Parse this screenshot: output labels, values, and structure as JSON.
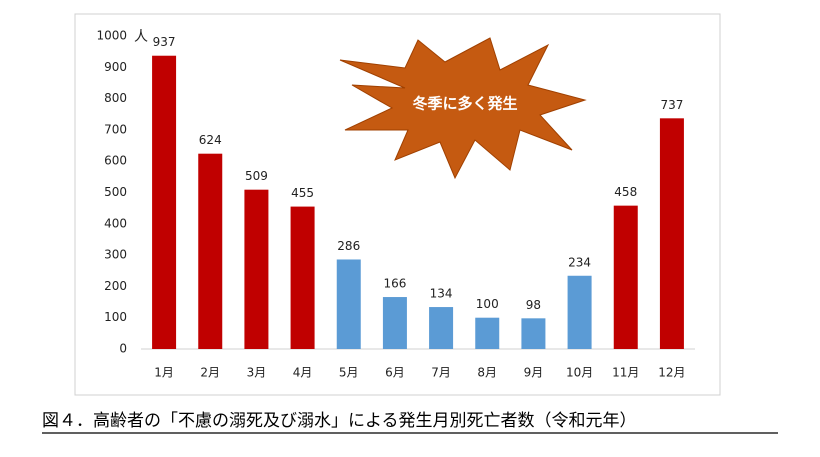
{
  "chart_data": {
    "type": "bar",
    "categories": [
      "1月",
      "2月",
      "3月",
      "4月",
      "5月",
      "6月",
      "7月",
      "8月",
      "9月",
      "10月",
      "11月",
      "12月"
    ],
    "values": [
      937,
      624,
      509,
      455,
      286,
      166,
      134,
      100,
      98,
      234,
      458,
      737
    ],
    "colors": [
      "#c00000",
      "#c00000",
      "#c00000",
      "#c00000",
      "#5b9bd5",
      "#5b9bd5",
      "#5b9bd5",
      "#5b9bd5",
      "#5b9bd5",
      "#5b9bd5",
      "#c00000",
      "#c00000"
    ],
    "ylim": [
      0,
      1000
    ],
    "yticks": [
      0,
      100,
      200,
      300,
      400,
      500,
      600,
      700,
      800,
      900,
      1000
    ],
    "y_unit": "人",
    "annotation": "冬季に多く発生",
    "caption": "図４．高齢者の「不慮の溺死及び溺水」による発生月別死亡者数（令和元年）",
    "grid": false
  }
}
